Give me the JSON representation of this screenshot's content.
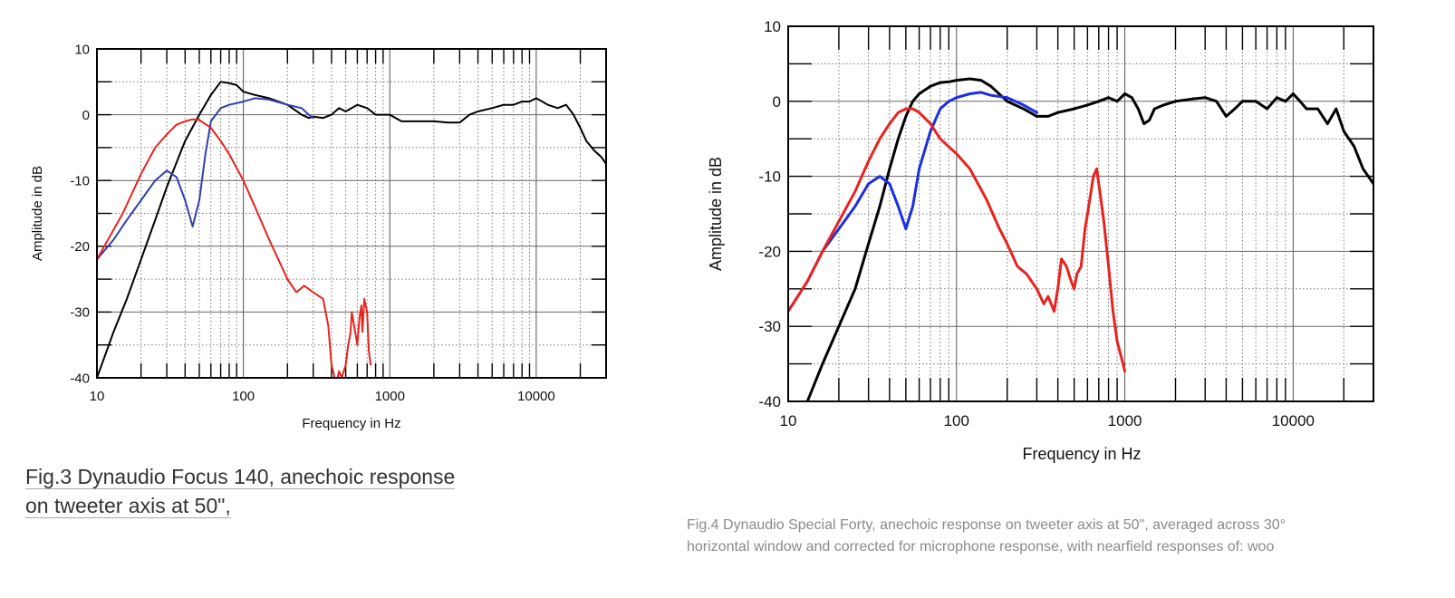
{
  "captions": {
    "fig3_line1": "Fig.3 Dynaudio Focus 140, anechoic response",
    "fig3_line2": "on tweeter axis at 50\",",
    "fig4_line1": "Fig.4 Dynaudio Special Forty, anechoic response on tweeter axis at 50\", averaged across 30°",
    "fig4_line2": "horizontal window and corrected for microphone response, with nearfield responses of: woo"
  },
  "colors": {
    "black": "#000000",
    "red": "#e8231e",
    "blue": "#2f3fb0",
    "blue_right": "#1c2fe0"
  },
  "chart_data": [
    {
      "type": "line",
      "title": "",
      "xlabel": "Frequency in Hz",
      "ylabel": "Amplitude in dB",
      "xscale": "log",
      "xlim": [
        10,
        30000
      ],
      "ylim": [
        -40,
        10
      ],
      "xticks": [
        10,
        100,
        1000,
        10000
      ],
      "xtick_labels": [
        "10",
        "100",
        "1000",
        "10000"
      ],
      "yticks": [
        10,
        0,
        -10,
        -20,
        -30,
        -40
      ],
      "ytick_labels": [
        "10",
        "0",
        "-10",
        "-20",
        "-30",
        "-40"
      ],
      "grid": true,
      "series": [
        {
          "color": "black",
          "x": [
            10,
            13,
            16,
            20,
            25,
            30,
            40,
            50,
            60,
            70,
            80,
            90,
            100,
            120,
            150,
            200,
            250,
            280,
            300,
            350,
            400,
            450,
            500,
            600,
            700,
            800,
            1000,
            1200,
            1500,
            2000,
            2500,
            3000,
            3500,
            4000,
            5000,
            6000,
            7000,
            8000,
            9000,
            10000,
            11000,
            12000,
            14000,
            16000,
            18000,
            20000,
            22000,
            25000,
            28000,
            30000
          ],
          "y": [
            -40,
            -33,
            -28,
            -22,
            -16,
            -11,
            -4,
            0,
            3,
            5,
            4.8,
            4.5,
            3.5,
            3,
            2.5,
            1.5,
            0,
            -0.5,
            -0.3,
            -0.5,
            0,
            1,
            0.5,
            1.5,
            1,
            0,
            0,
            -1,
            -1,
            -1,
            -1.2,
            -1.2,
            0,
            0.5,
            1,
            1.5,
            1.5,
            2,
            2,
            2.5,
            2,
            1.5,
            1,
            1.5,
            0,
            -2,
            -4,
            -5.5,
            -6.5,
            -7.5
          ]
        },
        {
          "color": "blue",
          "x": [
            10,
            13,
            16,
            20,
            25,
            30,
            35,
            40,
            45,
            50,
            55,
            60,
            70,
            80,
            100,
            120,
            150,
            200,
            250,
            280,
            300
          ],
          "y": [
            -22,
            -19,
            -16,
            -13,
            -10,
            -8.5,
            -9.5,
            -13,
            -17,
            -13,
            -6,
            -1,
            1,
            1.5,
            2,
            2.5,
            2.3,
            1.5,
            1,
            0,
            -0.5
          ]
        },
        {
          "color": "red",
          "x": [
            10,
            15,
            20,
            25,
            30,
            35,
            40,
            45,
            50,
            60,
            70,
            80,
            100,
            120,
            150,
            200,
            230,
            260,
            300,
            350,
            380,
            400,
            420,
            440,
            450,
            470,
            500,
            520,
            540,
            550,
            570,
            600,
            620,
            640,
            650,
            670,
            700,
            720,
            740
          ],
          "y": [
            -22,
            -15,
            -9,
            -5,
            -3,
            -1.5,
            -1,
            -0.7,
            -0.8,
            -2,
            -4,
            -6,
            -10,
            -14,
            -19,
            -25,
            -27,
            -26,
            -27,
            -28,
            -32,
            -38,
            -40,
            -40,
            -39,
            -40,
            -38,
            -35,
            -33,
            -30,
            -32,
            -35,
            -31,
            -29,
            -33,
            -28,
            -30,
            -36,
            -38
          ]
        }
      ]
    },
    {
      "type": "line",
      "title": "",
      "xlabel": "Frequency in Hz",
      "ylabel": "Amplitude in dB",
      "xscale": "log",
      "xlim": [
        10,
        30000
      ],
      "ylim": [
        -40,
        10
      ],
      "xticks": [
        10,
        100,
        1000,
        10000
      ],
      "xtick_labels": [
        "10",
        "100",
        "1000",
        "10000"
      ],
      "yticks": [
        10,
        0,
        -10,
        -20,
        -30,
        -40
      ],
      "ytick_labels": [
        "10",
        "0",
        "-10",
        "-20",
        "-30",
        "-40"
      ],
      "grid": true,
      "series": [
        {
          "color": "black",
          "x": [
            13,
            16,
            20,
            25,
            30,
            35,
            40,
            45,
            50,
            55,
            60,
            70,
            80,
            90,
            100,
            120,
            140,
            160,
            200,
            250,
            300,
            350,
            400,
            500,
            600,
            700,
            800,
            900,
            1000,
            1100,
            1200,
            1300,
            1400,
            1500,
            1700,
            2000,
            2500,
            3000,
            3500,
            4000,
            4500,
            5000,
            6000,
            7000,
            8000,
            9000,
            10000,
            11000,
            12000,
            14000,
            16000,
            18000,
            20000,
            23000,
            26000,
            30000
          ],
          "y": [
            -40,
            -35,
            -30,
            -25,
            -19,
            -14,
            -9,
            -5,
            -2,
            0,
            1,
            2,
            2.5,
            2.6,
            2.8,
            3,
            2.8,
            2,
            0,
            -1,
            -2,
            -2,
            -1.5,
            -1,
            -0.5,
            0,
            0.5,
            0,
            1,
            0.5,
            -1,
            -3,
            -2.5,
            -1,
            -0.5,
            0,
            0.3,
            0.5,
            0,
            -2,
            -1,
            0,
            0,
            -1,
            0.5,
            0,
            1,
            0,
            -1,
            -1,
            -3,
            -1,
            -4,
            -6,
            -9,
            -11
          ]
        },
        {
          "color": "blue_right",
          "x": [
            10,
            13,
            16,
            20,
            25,
            30,
            35,
            40,
            45,
            50,
            55,
            60,
            70,
            80,
            90,
            100,
            120,
            140,
            160,
            200,
            250,
            300
          ],
          "y": [
            -28,
            -24,
            -20,
            -17,
            -14,
            -11,
            -10,
            -11,
            -14,
            -17,
            -14,
            -9,
            -4,
            -1,
            0,
            0.5,
            1,
            1.2,
            0.8,
            0.5,
            -0.5,
            -1.5
          ]
        },
        {
          "color": "red",
          "x": [
            10,
            13,
            16,
            20,
            25,
            30,
            35,
            40,
            45,
            50,
            55,
            60,
            70,
            80,
            100,
            120,
            150,
            180,
            200,
            230,
            260,
            300,
            330,
            350,
            380,
            400,
            420,
            450,
            480,
            500,
            520,
            550,
            580,
            600,
            620,
            650,
            680,
            700,
            720,
            750,
            800,
            850,
            900,
            950,
            1000
          ],
          "y": [
            -28,
            -24,
            -20,
            -16,
            -12,
            -8,
            -5,
            -3,
            -1.5,
            -1,
            -1,
            -1.5,
            -3,
            -5,
            -7,
            -9,
            -13,
            -17,
            -19,
            -22,
            -23,
            -25,
            -27,
            -26,
            -28,
            -25,
            -21,
            -22,
            -24,
            -25,
            -23,
            -22,
            -17,
            -15,
            -13,
            -10,
            -9,
            -11,
            -13,
            -16,
            -22,
            -28,
            -32,
            -34,
            -36
          ]
        }
      ]
    }
  ]
}
